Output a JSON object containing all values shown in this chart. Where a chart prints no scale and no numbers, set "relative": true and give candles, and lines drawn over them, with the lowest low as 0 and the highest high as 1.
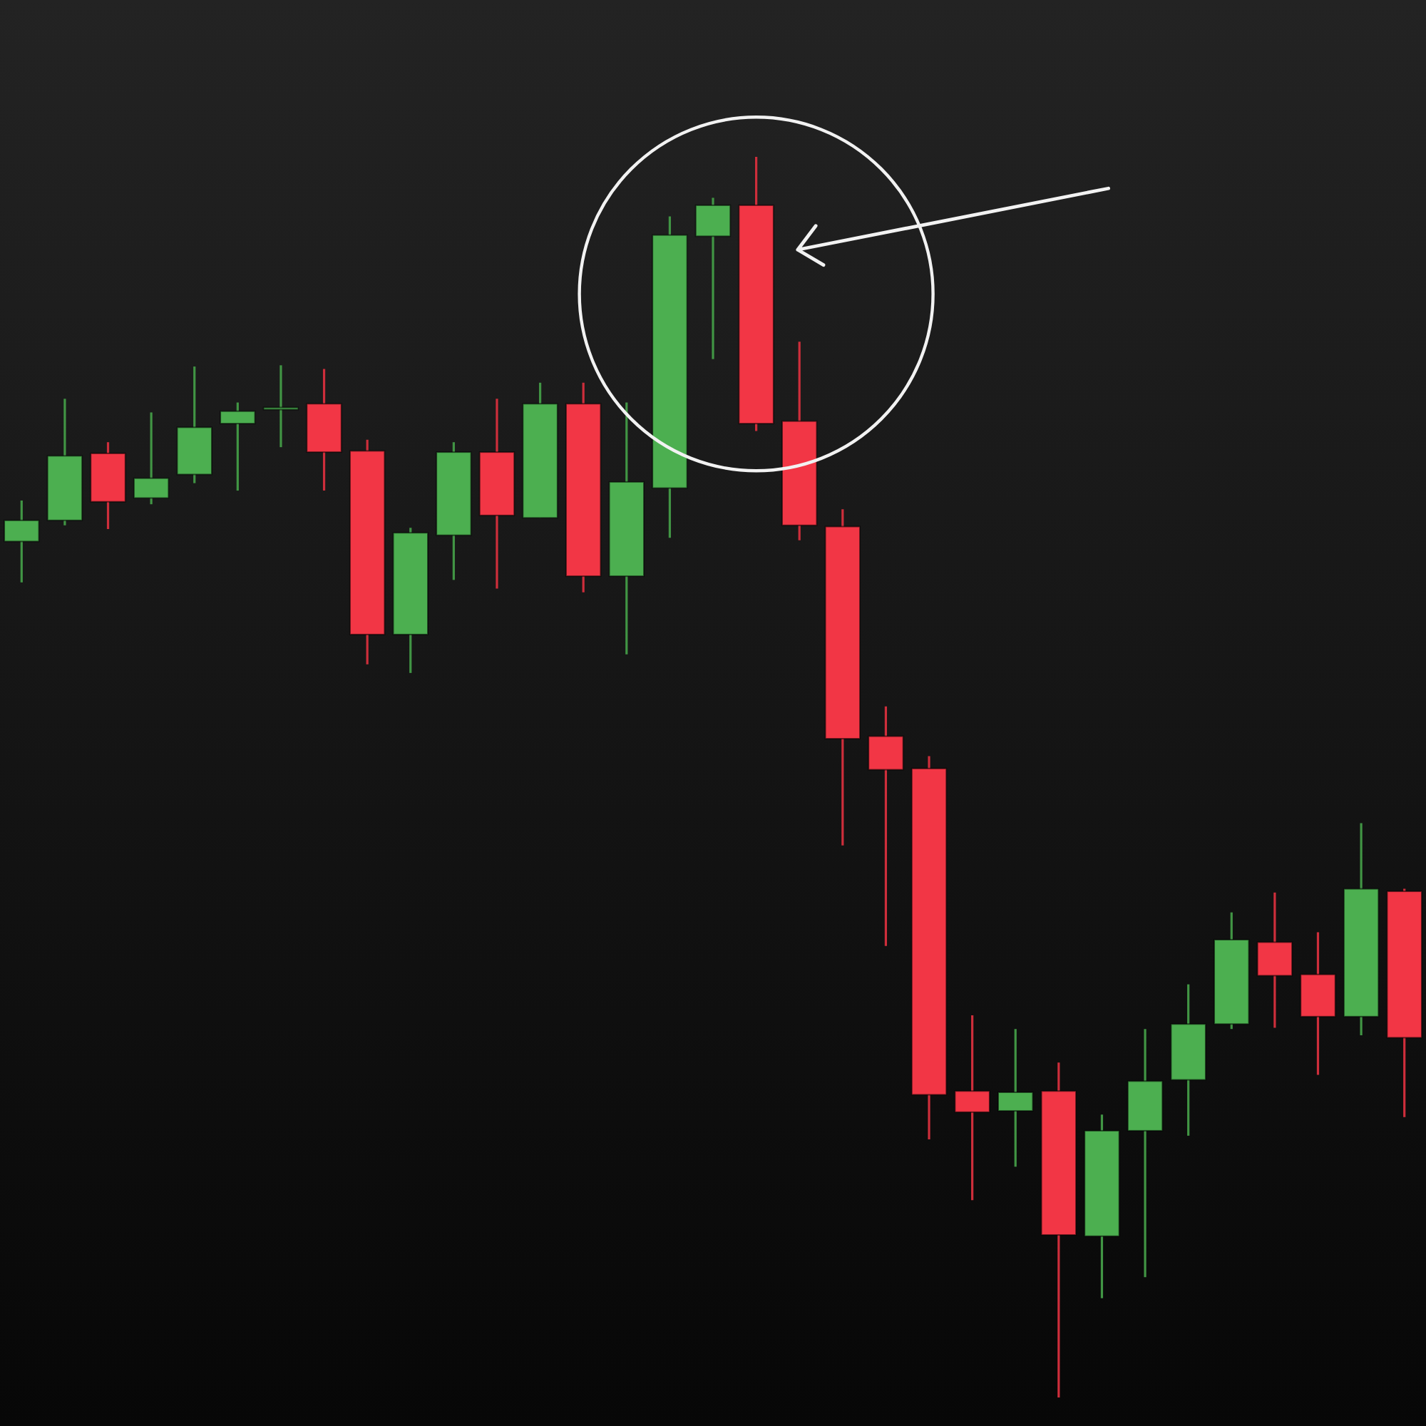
{
  "chart_data": {
    "type": "candlestick",
    "relative": true,
    "categories": [
      null,
      null,
      null,
      null,
      null,
      null,
      null,
      null,
      null,
      null,
      null,
      null,
      null,
      null,
      null,
      null,
      null,
      null,
      null,
      null,
      null,
      null,
      null,
      null,
      null,
      null,
      null,
      null,
      null,
      null,
      null,
      null,
      null
    ],
    "ohlc": [
      [
        0.69,
        0.723,
        0.657,
        0.707
      ],
      [
        0.707,
        0.805,
        0.703,
        0.759
      ],
      [
        0.761,
        0.77,
        0.7,
        0.722
      ],
      [
        0.725,
        0.794,
        0.72,
        0.741
      ],
      [
        0.744,
        0.831,
        0.737,
        0.782
      ],
      [
        0.785,
        0.802,
        0.731,
        0.795
      ],
      [
        0.798,
        0.832,
        0.766,
        0.798
      ],
      [
        0.801,
        0.829,
        0.731,
        0.762
      ],
      [
        0.763,
        0.772,
        0.591,
        0.615
      ],
      [
        0.615,
        0.701,
        0.584,
        0.697
      ],
      [
        0.695,
        0.77,
        0.659,
        0.762
      ],
      [
        0.762,
        0.805,
        0.652,
        0.711
      ],
      [
        0.709,
        0.818,
        0.709,
        0.801
      ],
      [
        0.801,
        0.818,
        0.649,
        0.662
      ],
      [
        0.662,
        0.802,
        0.599,
        0.738
      ],
      [
        0.733,
        0.952,
        0.693,
        0.937
      ],
      [
        0.936,
        0.967,
        0.837,
        0.961
      ],
      [
        0.961,
        1,
        0.779,
        0.785
      ],
      [
        0.787,
        0.851,
        0.691,
        0.703
      ],
      [
        0.702,
        0.716,
        0.445,
        0.531
      ],
      [
        0.533,
        0.557,
        0.364,
        0.506
      ],
      [
        0.507,
        0.517,
        0.208,
        0.244
      ],
      [
        0.247,
        0.308,
        0.159,
        0.23
      ],
      [
        0.231,
        0.297,
        0.186,
        0.246
      ],
      [
        0.247,
        0.27,
        0,
        0.131
      ],
      [
        0.13,
        0.228,
        0.08,
        0.215
      ],
      [
        0.215,
        0.297,
        0.097,
        0.255
      ],
      [
        0.256,
        0.333,
        0.211,
        0.301
      ],
      [
        0.301,
        0.391,
        0.297,
        0.369
      ],
      [
        0.367,
        0.407,
        0.298,
        0.34
      ],
      [
        0.341,
        0.375,
        0.26,
        0.307
      ],
      [
        0.307,
        0.463,
        0.292,
        0.41
      ],
      [
        0.408,
        0.41,
        0.226,
        0.29
      ]
    ],
    "colors": [
      "#4caf50",
      "#4caf50",
      "#f23645",
      "#4caf50",
      "#4caf50",
      "#4caf50",
      "#4caf50",
      "#f23645",
      "#f23645",
      "#4caf50",
      "#4caf50",
      "#f23645",
      "#4caf50",
      "#f23645",
      "#4caf50",
      "#4caf50",
      "#4caf50",
      "#f23645",
      "#f23645",
      "#f23645",
      "#f23645",
      "#f23645",
      "#f23645",
      "#4caf50",
      "#f23645",
      "#4caf50",
      "#4caf50",
      "#4caf50",
      "#4caf50",
      "#f23645",
      "#f23645",
      "#4caf50",
      "#f23645"
    ]
  }
}
